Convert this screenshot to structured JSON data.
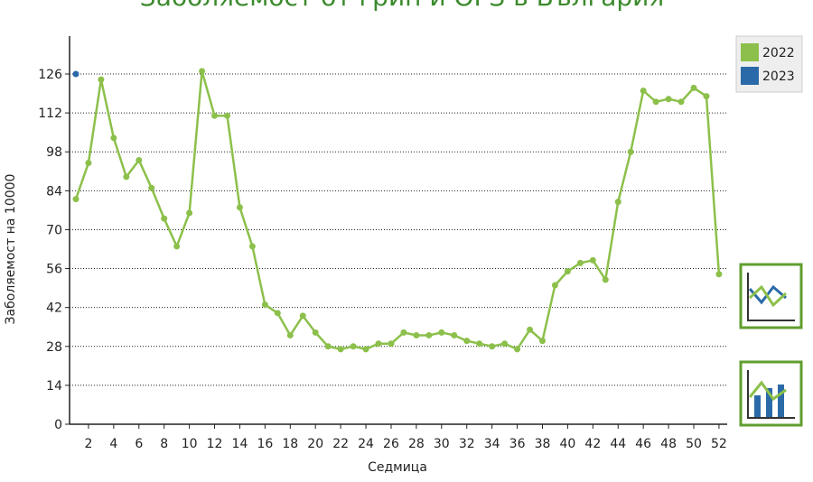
{
  "chart_data": {
    "type": "line",
    "title": "Заболяемост от грип и ОРЗ в България",
    "x_label": "Седмица",
    "y_label": "Заболяемост на 10000",
    "x": [
      1,
      2,
      3,
      4,
      5,
      6,
      7,
      8,
      9,
      10,
      11,
      12,
      13,
      14,
      15,
      16,
      17,
      18,
      19,
      20,
      21,
      22,
      23,
      24,
      25,
      26,
      27,
      28,
      29,
      30,
      31,
      32,
      33,
      34,
      35,
      36,
      37,
      38,
      39,
      40,
      41,
      42,
      43,
      44,
      45,
      46,
      47,
      48,
      49,
      50,
      51,
      52
    ],
    "series": [
      {
        "name": "2022",
        "color": "#8cc04b",
        "values": [
          81,
          94,
          124,
          103,
          89,
          95,
          85,
          74,
          64,
          76,
          127,
          111,
          111,
          78,
          64,
          43,
          40,
          32,
          39,
          33,
          28,
          27,
          28,
          27,
          29,
          29,
          33,
          32,
          32,
          33,
          32,
          30,
          29,
          28,
          29,
          27,
          34,
          30,
          50,
          55,
          58,
          59,
          52,
          80,
          98,
          120,
          116,
          117,
          116,
          121,
          118,
          54
        ]
      },
      {
        "name": "2023",
        "color": "#2a6aa8",
        "values": [
          126,
          null,
          null,
          null,
          null,
          null,
          null,
          null,
          null,
          null,
          null,
          null,
          null,
          null,
          null,
          null,
          null,
          null,
          null,
          null,
          null,
          null,
          null,
          null,
          null,
          null,
          null,
          null,
          null,
          null,
          null,
          null,
          null,
          null,
          null,
          null,
          null,
          null,
          null,
          null,
          null,
          null,
          null,
          null,
          null,
          null,
          null,
          null,
          null,
          null,
          null,
          null
        ]
      }
    ],
    "xlim": [
      0.5,
      52.65
    ],
    "ylim": [
      0,
      126
    ],
    "xticks": [
      2,
      4,
      6,
      8,
      10,
      12,
      14,
      16,
      18,
      20,
      22,
      24,
      26,
      28,
      30,
      32,
      34,
      36,
      38,
      40,
      42,
      44,
      46,
      48,
      50,
      52
    ],
    "yticks": [
      0,
      14,
      28,
      42,
      56,
      70,
      84,
      98,
      112,
      126
    ],
    "grid": true,
    "legend_position": "upper right"
  }
}
